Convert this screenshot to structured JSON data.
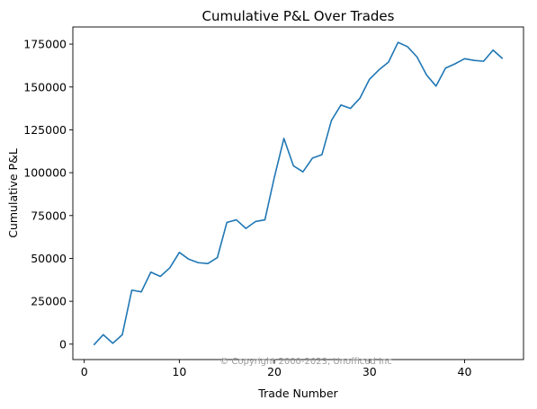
{
  "chart_data": {
    "type": "line",
    "title": "Cumulative P&L Over Trades",
    "xlabel": "Trade Number",
    "ylabel": "Cumulative P&L",
    "xlim": [
      -1.2,
      46.2
    ],
    "ylim": [
      -9000,
      185000
    ],
    "xticks": [
      0,
      10,
      20,
      30,
      40
    ],
    "yticks": [
      0,
      25000,
      50000,
      75000,
      100000,
      125000,
      150000,
      175000
    ],
    "grid": false,
    "line_color": "#1f77b4",
    "series": [
      {
        "x": [
          1,
          2,
          3,
          4,
          5,
          6,
          7,
          8,
          9,
          10,
          11,
          12,
          13,
          14,
          15,
          16,
          17,
          18,
          19,
          20,
          21,
          22,
          23,
          24,
          25,
          26,
          27,
          28,
          29,
          30,
          31,
          32,
          33,
          34,
          35,
          36,
          37,
          38,
          39,
          40,
          41,
          42,
          43,
          44
        ],
        "values": [
          -500,
          5500,
          500,
          5500,
          31500,
          30500,
          42000,
          39500,
          44500,
          53500,
          49500,
          47500,
          47000,
          50500,
          71000,
          72500,
          67500,
          71500,
          72500,
          97500,
          120000,
          104000,
          100500,
          108500,
          110500,
          130500,
          139500,
          137500,
          143500,
          154500,
          160000,
          164500,
          176000,
          173500,
          167500,
          157000,
          150500,
          161000,
          163500,
          166500,
          165500,
          165000,
          171500,
          166500
        ]
      }
    ],
    "watermark": "© Copyright 2000-2023, Unofficed Inc"
  }
}
